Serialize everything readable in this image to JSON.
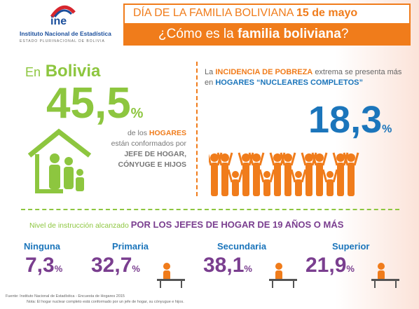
{
  "header": {
    "logo": "ine",
    "org": "Instituto Nacional de Estadística",
    "org_sub": "ESTADO PLURINACIONAL DE BOLIVIA",
    "title_pre": "DÍA DE LA FAMILIA BOLIVIANA",
    "title_date": "15 de mayo",
    "subtitle_pre": "¿Cómo es la",
    "subtitle_em": "familia boliviana",
    "subtitle_post": "?"
  },
  "left": {
    "pre": "En",
    "place": "Bolivia",
    "value": "45,5",
    "unit": "%",
    "line1": "de los",
    "line1_em": "HOGARES",
    "line2": "están conformados por",
    "line3": "JEFE DE HOGAR,",
    "line4": "CÓNYUGE E HIJOS"
  },
  "right": {
    "t1": "La",
    "t1_em": "INCIDENCIA DE POBREZA",
    "t2": "extrema se presenta más en",
    "t2_em": "HOGARES “NUCLEARES COMPLETOS”",
    "value": "18,3",
    "unit": "%"
  },
  "education": {
    "intro": "Nivel de instrucción alcanzado",
    "intro_em": "POR LOS JEFES DE HOGAR DE 19 AÑOS O MÁS",
    "levels": [
      {
        "name": "Ninguna",
        "value": "7,3",
        "unit": "%"
      },
      {
        "name": "Primaria",
        "value": "32,7",
        "unit": "%"
      },
      {
        "name": "Secundaria",
        "value": "38,1",
        "unit": "%"
      },
      {
        "name": "Superior",
        "value": "21,9",
        "unit": "%"
      }
    ]
  },
  "footer": {
    "source": "Fuente: Instituto Nacional de Estadística - Encuesta de Hogares 2015",
    "note": "Nota: El hogar nuclear completo está conformado por un jefe de hogar, su cónyugue e hijos."
  }
}
